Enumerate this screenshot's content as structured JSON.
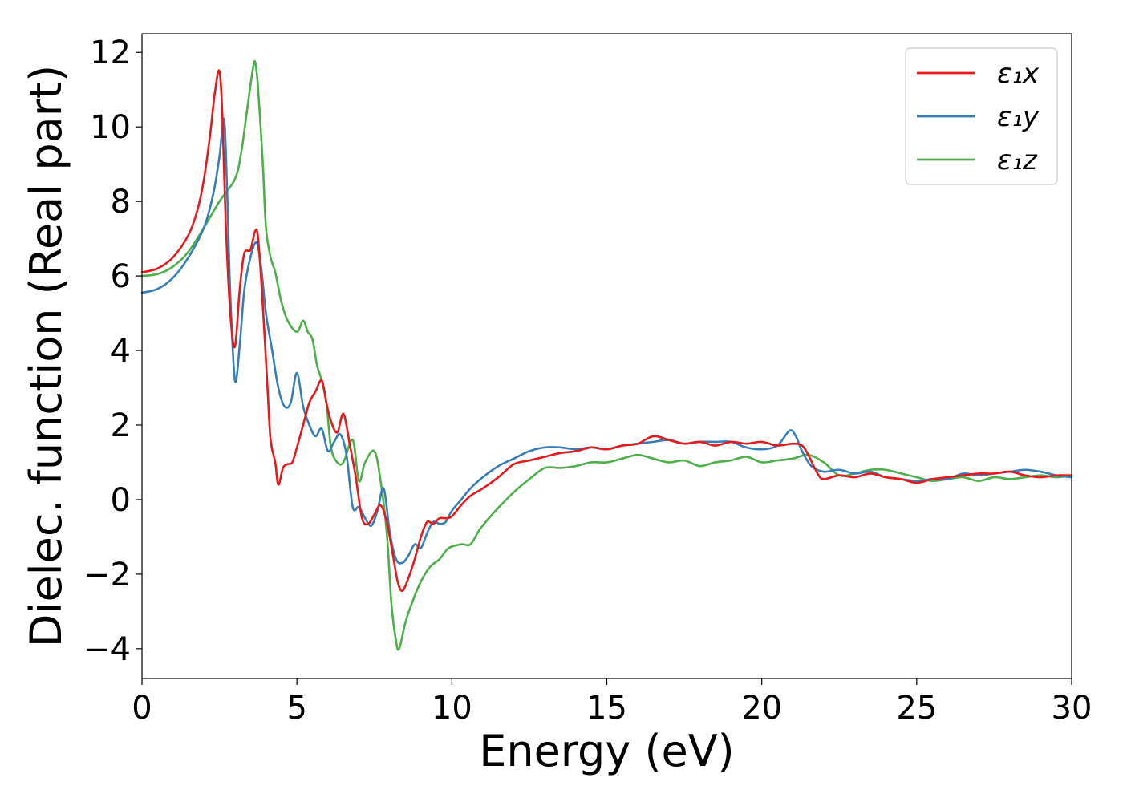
{
  "chart_data": {
    "type": "line",
    "xlabel": "Energy (eV)",
    "ylabel": "Dielec. function (Real part)",
    "xlim": [
      0,
      30
    ],
    "ylim": [
      -4.8,
      12.5
    ],
    "xticks": [
      0,
      5,
      10,
      15,
      20,
      25,
      30
    ],
    "xtick_labels": [
      "0",
      "5",
      "10",
      "15",
      "20",
      "25",
      "30"
    ],
    "yticks": [
      -4,
      -2,
      0,
      2,
      4,
      6,
      8,
      10,
      12
    ],
    "ytick_labels": [
      "−4",
      "−2",
      "0",
      "2",
      "4",
      "6",
      "8",
      "10",
      "12"
    ],
    "grid": false,
    "legend_position": "top-right",
    "series": [
      {
        "name": "ε₁x",
        "color": "#e41a1c",
        "x": [
          0,
          0.5,
          1.0,
          1.5,
          1.8,
          2.0,
          2.2,
          2.35,
          2.5,
          2.6,
          2.7,
          2.85,
          3.0,
          3.15,
          3.3,
          3.5,
          3.65,
          3.75,
          3.9,
          4.05,
          4.15,
          4.3,
          4.4,
          4.55,
          4.7,
          4.85,
          5.0,
          5.2,
          5.4,
          5.6,
          5.8,
          5.95,
          6.1,
          6.3,
          6.5,
          6.7,
          6.9,
          7.1,
          7.3,
          7.5,
          7.7,
          7.9,
          8.1,
          8.25,
          8.4,
          8.6,
          8.8,
          9.0,
          9.2,
          9.4,
          9.6,
          9.8,
          10.0,
          10.3,
          10.6,
          11.0,
          11.5,
          12.0,
          12.5,
          13.0,
          13.5,
          14.0,
          14.5,
          15.0,
          15.5,
          16.0,
          16.5,
          17.0,
          17.5,
          18.0,
          18.5,
          19.0,
          19.5,
          20.0,
          20.5,
          21.0,
          21.3,
          21.5,
          21.8,
          22.0,
          22.5,
          23.0,
          23.5,
          24.0,
          24.5,
          25.0,
          25.5,
          26.0,
          26.5,
          27.0,
          27.5,
          28.0,
          28.5,
          29.0,
          29.5,
          30.0
        ],
        "y": [
          6.1,
          6.2,
          6.5,
          7.1,
          7.8,
          8.6,
          9.8,
          10.9,
          11.5,
          10.2,
          7.5,
          5.0,
          4.1,
          5.6,
          6.6,
          6.7,
          7.2,
          7.0,
          5.2,
          3.0,
          1.6,
          1.0,
          0.4,
          0.85,
          0.95,
          1.0,
          1.4,
          2.0,
          2.6,
          2.9,
          3.2,
          2.6,
          2.1,
          1.8,
          2.3,
          1.5,
          0.6,
          -0.5,
          -0.65,
          -0.4,
          -0.15,
          -0.6,
          -1.5,
          -2.2,
          -2.45,
          -2.1,
          -1.6,
          -1.0,
          -0.6,
          -0.65,
          -0.5,
          -0.5,
          -0.45,
          -0.15,
          0.1,
          0.3,
          0.6,
          0.95,
          1.05,
          1.15,
          1.25,
          1.3,
          1.4,
          1.35,
          1.45,
          1.5,
          1.7,
          1.6,
          1.5,
          1.55,
          1.45,
          1.55,
          1.5,
          1.55,
          1.45,
          1.5,
          1.45,
          1.2,
          0.7,
          0.55,
          0.65,
          0.6,
          0.7,
          0.6,
          0.55,
          0.45,
          0.55,
          0.6,
          0.65,
          0.7,
          0.7,
          0.75,
          0.65,
          0.6,
          0.65,
          0.65
        ]
      },
      {
        "name": "ε₁y",
        "color": "#377eb8",
        "x": [
          0,
          0.5,
          1.0,
          1.5,
          2.0,
          2.3,
          2.5,
          2.65,
          2.75,
          2.85,
          3.0,
          3.15,
          3.3,
          3.5,
          3.7,
          3.85,
          4.0,
          4.2,
          4.4,
          4.6,
          4.8,
          5.0,
          5.2,
          5.4,
          5.6,
          5.8,
          6.0,
          6.2,
          6.4,
          6.6,
          6.8,
          7.0,
          7.2,
          7.4,
          7.6,
          7.8,
          8.0,
          8.2,
          8.4,
          8.6,
          8.8,
          9.0,
          9.2,
          9.4,
          9.6,
          9.8,
          10.0,
          10.3,
          10.6,
          11.0,
          11.5,
          12.0,
          12.5,
          13.0,
          13.5,
          14.0,
          14.5,
          15.0,
          15.5,
          16.0,
          16.5,
          17.0,
          17.5,
          18.0,
          18.5,
          19.0,
          19.5,
          20.0,
          20.5,
          20.9,
          21.1,
          21.3,
          21.6,
          22.0,
          22.5,
          23.0,
          23.5,
          24.0,
          24.5,
          25.0,
          25.5,
          26.0,
          26.5,
          27.0,
          27.5,
          28.0,
          28.5,
          29.0,
          29.5,
          30.0
        ],
        "y": [
          5.55,
          5.65,
          5.95,
          6.5,
          7.3,
          8.2,
          9.2,
          10.2,
          8.2,
          5.5,
          3.2,
          4.1,
          5.6,
          6.5,
          6.9,
          6.2,
          5.0,
          4.0,
          3.0,
          2.5,
          2.6,
          3.4,
          2.5,
          2.0,
          1.7,
          1.9,
          1.3,
          1.55,
          1.75,
          1.2,
          -0.2,
          -0.2,
          -0.5,
          -0.7,
          -0.3,
          0.3,
          -0.9,
          -1.6,
          -1.7,
          -1.5,
          -1.2,
          -1.3,
          -0.9,
          -0.6,
          -0.65,
          -0.6,
          -0.3,
          0.0,
          0.3,
          0.6,
          0.9,
          1.1,
          1.3,
          1.4,
          1.4,
          1.35,
          1.4,
          1.35,
          1.45,
          1.5,
          1.55,
          1.6,
          1.5,
          1.55,
          1.55,
          1.55,
          1.4,
          1.35,
          1.45,
          1.85,
          1.7,
          1.3,
          0.9,
          0.75,
          0.8,
          0.7,
          0.75,
          0.6,
          0.55,
          0.5,
          0.55,
          0.55,
          0.7,
          0.65,
          0.7,
          0.75,
          0.8,
          0.75,
          0.65,
          0.6
        ]
      },
      {
        "name": "ε₁z",
        "color": "#4daf4a",
        "x": [
          0,
          0.5,
          1.0,
          1.5,
          2.0,
          2.5,
          3.0,
          3.2,
          3.4,
          3.55,
          3.65,
          3.75,
          3.9,
          4.0,
          4.15,
          4.3,
          4.5,
          4.7,
          5.0,
          5.2,
          5.35,
          5.5,
          5.65,
          5.8,
          5.95,
          6.1,
          6.3,
          6.5,
          6.8,
          7.0,
          7.2,
          7.5,
          7.7,
          7.9,
          8.05,
          8.2,
          8.3,
          8.5,
          8.7,
          9.0,
          9.3,
          9.6,
          9.9,
          10.3,
          10.6,
          10.9,
          11.3,
          12.0,
          12.5,
          13.0,
          13.5,
          14.0,
          14.5,
          15.0,
          15.5,
          16.0,
          16.5,
          17.0,
          17.5,
          18.0,
          18.5,
          19.0,
          19.5,
          20.0,
          20.5,
          21.0,
          21.5,
          22.0,
          22.5,
          23.0,
          23.5,
          24.0,
          24.5,
          25.0,
          25.5,
          26.0,
          26.5,
          27.0,
          27.5,
          28.0,
          28.5,
          29.0,
          29.5,
          30.0
        ],
        "y": [
          6.0,
          6.05,
          6.25,
          6.65,
          7.3,
          8.0,
          8.6,
          9.3,
          10.5,
          11.4,
          11.75,
          11.0,
          9.0,
          7.3,
          6.5,
          6.1,
          5.3,
          4.8,
          4.5,
          4.8,
          4.5,
          4.3,
          3.6,
          3.2,
          2.6,
          1.4,
          1.0,
          1.0,
          1.6,
          0.5,
          1.0,
          1.3,
          0.5,
          -0.9,
          -2.8,
          -3.8,
          -4.0,
          -3.3,
          -2.8,
          -2.2,
          -1.8,
          -1.6,
          -1.3,
          -1.2,
          -1.2,
          -0.8,
          -0.4,
          0.2,
          0.55,
          0.85,
          0.85,
          0.9,
          1.0,
          1.0,
          1.1,
          1.2,
          1.1,
          1.0,
          1.05,
          0.9,
          1.0,
          1.05,
          1.15,
          1.0,
          1.05,
          1.1,
          1.2,
          1.0,
          0.65,
          0.7,
          0.8,
          0.8,
          0.7,
          0.6,
          0.5,
          0.55,
          0.6,
          0.5,
          0.6,
          0.55,
          0.6,
          0.65,
          0.6,
          0.65
        ]
      }
    ]
  }
}
